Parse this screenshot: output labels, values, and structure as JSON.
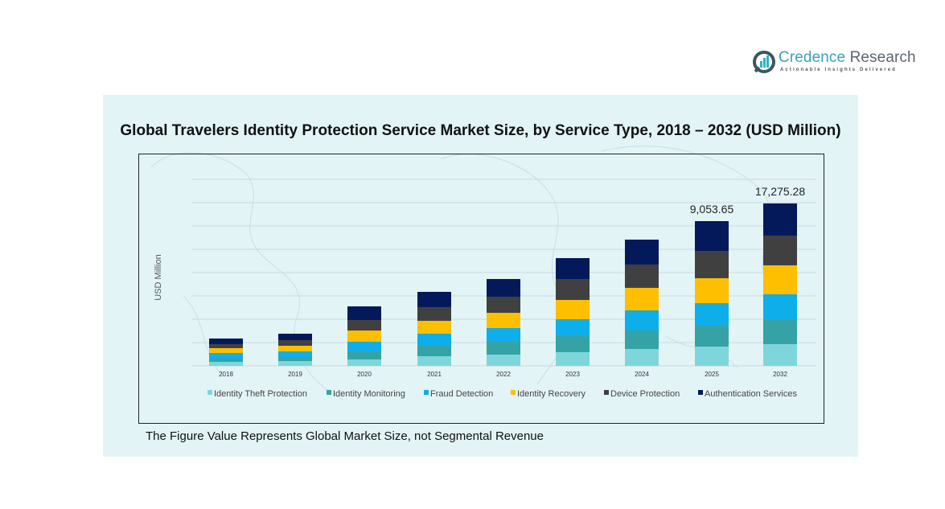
{
  "brand": {
    "name_part1": "Credence",
    "name_part2": " Research",
    "tagline": "Actionable Insights Delivered",
    "icon": "bar-chart-circle-logo-icon"
  },
  "footnote": "The Figure Value Represents Global Market Size, not Segmental Revenue",
  "chart_data": {
    "type": "bar",
    "stacked": true,
    "title": "Global Travelers Identity Protection Service Market Size, by Service Type, 2018 – 2032 (USD Million)",
    "xlabel": "",
    "ylabel": "USD Million",
    "ylim": [
      0,
      20000
    ],
    "grid": true,
    "legend_position": "bottom",
    "categories": [
      "2018",
      "2019",
      "2020",
      "2021",
      "2022",
      "2023",
      "2024",
      "2025",
      "2032"
    ],
    "series": [
      {
        "name": "Identity Theft Protection",
        "color": "#7fd6da",
        "values": [
          252,
          302,
          402,
          604,
          704,
          855,
          1056,
          1207,
          2310
        ]
      },
      {
        "name": "Identity Monitoring",
        "color": "#35a3a5",
        "values": [
          201,
          252,
          503,
          654,
          805,
          1006,
          1157,
          1308,
          2566
        ]
      },
      {
        "name": "Fraud Detection",
        "color": "#0eaeea",
        "values": [
          352,
          352,
          604,
          755,
          855,
          1056,
          1258,
          1409,
          2737
        ]
      },
      {
        "name": "Identity Recovery",
        "color": "#fdbf00",
        "values": [
          302,
          352,
          704,
          805,
          956,
          1207,
          1409,
          1559,
          3079
        ]
      },
      {
        "name": "Device Protection",
        "color": "#404040",
        "values": [
          252,
          352,
          654,
          855,
          1006,
          1308,
          1459,
          1710,
          3164
        ]
      },
      {
        "name": "Authentication Services",
        "color": "#03195a",
        "values": [
          352,
          402,
          855,
          956,
          1107,
          1308,
          1559,
          1861,
          3420
        ]
      }
    ],
    "totals_labels": [
      {
        "category": "2025",
        "label": "9,053.65"
      },
      {
        "category": "2032",
        "label": "17,275.28"
      }
    ]
  }
}
